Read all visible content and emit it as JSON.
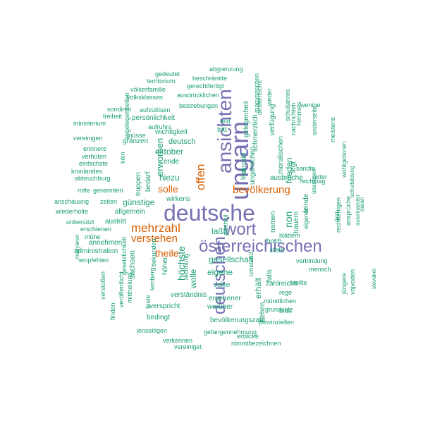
{
  "palette": {
    "big": "#7570b3",
    "medium": "#d95f02",
    "small": "#1b9e77"
  },
  "words": [
    {
      "text": "deutsche",
      "tier": "big"
    },
    {
      "text": "ungarn",
      "tier": "big"
    },
    {
      "text": "ansichten",
      "tier": "big"
    },
    {
      "text": "wort",
      "tier": "big"
    },
    {
      "text": "österreichischen",
      "tier": "big"
    },
    {
      "text": "deutschen",
      "tier": "big"
    },
    {
      "text": "mehrzahl",
      "tier": "medium"
    },
    {
      "text": "verstehen",
      "tier": "medium"
    },
    {
      "text": "bevölkerung",
      "tier": "medium"
    },
    {
      "text": "offen",
      "tier": "medium"
    },
    {
      "text": "solle",
      "tier": "medium"
    },
    {
      "text": "theile",
      "tier": "medium"
    },
    {
      "text": "abgrenzung",
      "tier": "small"
    },
    {
      "text": "gedeutet",
      "tier": "small"
    },
    {
      "text": "beschränkte",
      "tier": "small"
    },
    {
      "text": "territorium",
      "tier": "small"
    },
    {
      "text": "gerechtfertigt",
      "tier": "small"
    },
    {
      "text": "völkerfamilie",
      "tier": "small"
    },
    {
      "text": "ausdrücklichen",
      "tier": "small"
    },
    {
      "text": "volksklassen",
      "tier": "small"
    },
    {
      "text": "bestrebungen",
      "tier": "small"
    },
    {
      "text": "sondiren",
      "tier": "small"
    },
    {
      "text": "aufzulösen",
      "tier": "small"
    },
    {
      "text": "persönlichkeit",
      "tier": "small"
    },
    {
      "text": "freiheit",
      "tier": "small"
    },
    {
      "text": "ministerium",
      "tier": "small"
    },
    {
      "text": "aufruhrs",
      "tier": "small"
    },
    {
      "text": "müsse",
      "tier": "small"
    },
    {
      "text": "wichtigkeit",
      "tier": "small"
    },
    {
      "text": "vereinigen",
      "tier": "small"
    },
    {
      "text": "gränzen",
      "tier": "small"
    },
    {
      "text": "deutsch",
      "tier": "small"
    },
    {
      "text": "oktober",
      "tier": "small"
    },
    {
      "text": "erinnere",
      "tier": "small"
    },
    {
      "text": "verhüten",
      "tier": "small"
    },
    {
      "text": "einfachste",
      "tier": "small"
    },
    {
      "text": "kronlandes",
      "tier": "small"
    },
    {
      "text": "abbruchburg",
      "tier": "small"
    },
    {
      "text": "ende",
      "tier": "small"
    },
    {
      "text": "hiezu",
      "tier": "small"
    },
    {
      "text": "rotte",
      "tier": "small"
    },
    {
      "text": "genannten",
      "tier": "small"
    },
    {
      "text": "anschauung",
      "tier": "small"
    },
    {
      "text": "zeiten",
      "tier": "small"
    },
    {
      "text": "günstige",
      "tier": "small"
    },
    {
      "text": "wirkens",
      "tier": "small"
    },
    {
      "text": "wiederholte",
      "tier": "small"
    },
    {
      "text": "allgemein",
      "tier": "small"
    },
    {
      "text": "unbenützt",
      "tier": "small"
    },
    {
      "text": "austritt",
      "tier": "small"
    },
    {
      "text": "erschienen",
      "tier": "small"
    },
    {
      "text": "annehmen",
      "tier": "small"
    },
    {
      "text": "mühe",
      "tier": "small"
    },
    {
      "text": "administration",
      "tier": "small"
    },
    {
      "text": "empfehlen",
      "tier": "small"
    },
    {
      "text": "feld",
      "tier": "small"
    },
    {
      "text": "tritt",
      "tier": "small"
    },
    {
      "text": "ausbruche",
      "tier": "small"
    },
    {
      "text": "reichstag",
      "tier": "small"
    },
    {
      "text": "sandte",
      "tier": "small"
    },
    {
      "text": "retter",
      "tier": "small"
    },
    {
      "text": "wenige",
      "tier": "small"
    },
    {
      "text": "gesellschaft",
      "tier": "small"
    },
    {
      "text": "eigene",
      "tier": "small"
    },
    {
      "text": "volke",
      "tier": "small"
    },
    {
      "text": "hoch",
      "tier": "small"
    },
    {
      "text": "stets",
      "tier": "small"
    },
    {
      "text": "verbindung",
      "tier": "small"
    },
    {
      "text": "mensch",
      "tier": "small"
    },
    {
      "text": "blättern",
      "tier": "small"
    },
    {
      "text": "verständnis",
      "tier": "small"
    },
    {
      "text": "verspricht",
      "tier": "small"
    },
    {
      "text": "zahlreiche",
      "tier": "small"
    },
    {
      "text": "stellte",
      "tier": "small"
    },
    {
      "text": "rege",
      "tier": "small"
    },
    {
      "text": "mündlichen",
      "tier": "small"
    },
    {
      "text": "grundsatz",
      "tier": "small"
    },
    {
      "text": "breit",
      "tier": "small"
    },
    {
      "text": "ergebener",
      "tier": "small"
    },
    {
      "text": "worüber",
      "tier": "small"
    },
    {
      "text": "bedingt",
      "tier": "small"
    },
    {
      "text": "bevölkerungszahl",
      "tier": "small"
    },
    {
      "text": "provinziellen",
      "tier": "small"
    },
    {
      "text": "jenseitigen",
      "tier": "small"
    },
    {
      "text": "gefangennehmung",
      "tier": "small"
    },
    {
      "text": "erblicke",
      "tier": "small"
    },
    {
      "text": "verkennen",
      "tier": "small"
    },
    {
      "text": "nimmtbezeichnen",
      "tier": "small"
    },
    {
      "text": "vereiniget",
      "tier": "small"
    },
    {
      "text": "gelegenheit",
      "tier": "small"
    },
    {
      "text": "schmerzlich",
      "tier": "small"
    },
    {
      "text": "magyarischen",
      "tier": "small"
    },
    {
      "text": "weder",
      "tier": "small"
    },
    {
      "text": "verfügung",
      "tier": "small"
    },
    {
      "text": "schuljahres",
      "tier": "small"
    },
    {
      "text": "himmels",
      "tier": "small"
    },
    {
      "text": "nachrichten",
      "tier": "small"
    },
    {
      "text": "oesterreichs",
      "tier": "small"
    },
    {
      "text": "legt",
      "tier": "small"
    },
    {
      "text": "anderseits",
      "tier": "small"
    },
    {
      "text": "meistens",
      "tier": "small"
    },
    {
      "text": "wohlgeboren",
      "tier": "small"
    },
    {
      "text": "schulbildung",
      "tier": "small"
    },
    {
      "text": "daran",
      "tier": "small"
    },
    {
      "text": "moralischen",
      "tier": "small"
    },
    {
      "text": "frieden",
      "tier": "small"
    },
    {
      "text": "ungarischen",
      "tier": "small"
    },
    {
      "text": "anzahl",
      "tier": "small"
    },
    {
      "text": "laut",
      "tier": "small"
    },
    {
      "text": "non",
      "tier": "small"
    },
    {
      "text": "bauern",
      "tier": "small"
    },
    {
      "text": "eigener",
      "tier": "small"
    },
    {
      "text": "feinde",
      "tier": "small"
    },
    {
      "text": "überlegen",
      "tier": "small"
    },
    {
      "text": "ärzt",
      "tier": "small"
    },
    {
      "text": "ansprüche",
      "tier": "small"
    },
    {
      "text": "rechtfertigen",
      "tier": "small"
    },
    {
      "text": "auseinander",
      "tier": "small"
    },
    {
      "text": "namen",
      "tier": "small"
    },
    {
      "text": "erhält",
      "tier": "small"
    },
    {
      "text": "umstand",
      "tier": "small"
    },
    {
      "text": "falls",
      "tier": "small"
    },
    {
      "text": "ziehen",
      "tier": "small"
    },
    {
      "text": "jüngere",
      "tier": "small"
    },
    {
      "text": "vojvoden",
      "tier": "small"
    },
    {
      "text": "slovakei",
      "tier": "small"
    },
    {
      "text": "angelegenheiten",
      "tier": "small"
    },
    {
      "text": "kein",
      "tier": "small"
    },
    {
      "text": "truppen",
      "tier": "small"
    },
    {
      "text": "bedarf",
      "tier": "small"
    },
    {
      "text": "erworben",
      "tier": "small"
    },
    {
      "text": "magyaren",
      "tier": "small"
    },
    {
      "text": "verstoßen",
      "tier": "small"
    },
    {
      "text": "finden",
      "tier": "small"
    },
    {
      "text": "veröffentlicht",
      "tier": "small"
    },
    {
      "text": "mittheilung",
      "tier": "small"
    },
    {
      "text": "sachsen",
      "tier": "small"
    },
    {
      "text": "gesetzlichkeit",
      "tier": "small"
    },
    {
      "text": "feste",
      "tier": "small"
    },
    {
      "text": "lemberg",
      "tier": "small"
    },
    {
      "text": "bekunden",
      "tier": "small"
    },
    {
      "text": "höher",
      "tier": "small"
    },
    {
      "text": "rechnung",
      "tier": "small"
    },
    {
      "text": "höchste",
      "tier": "small"
    },
    {
      "text": "wolle",
      "tier": "small"
    },
    {
      "text": "partheil",
      "tier": "small"
    },
    {
      "text": "laßt",
      "tier": "small"
    },
    {
      "text": "h",
      "tier": "small"
    }
  ]
}
